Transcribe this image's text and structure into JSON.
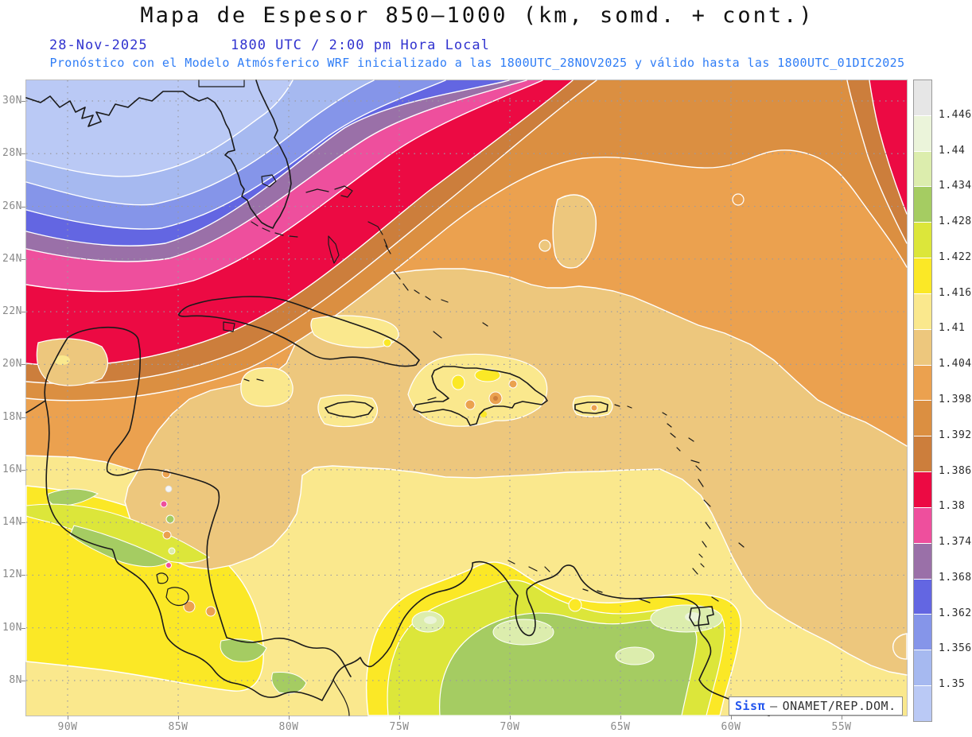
{
  "header": {
    "title": "Mapa de Espesor 850–1000 (km, somd. + cont.)",
    "date": "28-Nov-2025",
    "time_line": "1800 UTC / 2:00 pm Hora Local",
    "forecast_line": "Pronóstico con el Modelo Atmósferico WRF inicializado a las 1800UTC_28NOV2025 y válido hasta las  1800UTC_01DIC2025"
  },
  "axes": {
    "lat": [
      "30N",
      "28N",
      "26N",
      "24N",
      "22N",
      "20N",
      "18N",
      "16N",
      "14N",
      "12N",
      "10N",
      "8N"
    ],
    "lon": [
      "90W",
      "85W",
      "80W",
      "75W",
      "70W",
      "65W",
      "60W",
      "55W"
    ]
  },
  "colorbar": {
    "ticks": [
      "1.446",
      "1.44",
      "1.434",
      "1.428",
      "1.422",
      "1.416",
      "1.41",
      "1.404",
      "1.398",
      "1.392",
      "1.386",
      "1.38",
      "1.374",
      "1.368",
      "1.362",
      "1.356",
      "1.35"
    ],
    "colors": [
      "#e6e6e6",
      "#ebf4da",
      "#dcedad",
      "#a5cc62",
      "#dce63a",
      "#fbe826",
      "#fae88d",
      "#edc77d",
      "#eba14f",
      "#db8f41",
      "#cc7e3c",
      "#ec0a43",
      "#ee4f9d",
      "#9a70a8",
      "#6366e2",
      "#8595e9",
      "#a6b9f0",
      "#bac9f5"
    ]
  },
  "watermark": {
    "brand": "Sisπ",
    "dash": "–",
    "org": "ONAMET/REP.DOM."
  },
  "palette": {
    "paleblue": "#bac9f5",
    "lightblue": "#a6b9f0",
    "medblue": "#8595e9",
    "violet": "#6366e2",
    "purple": "#9a70a8",
    "pink": "#ee4f9d",
    "crimson": "#ec0a43",
    "brown": "#cc7e3c",
    "darkorange": "#db8f41",
    "orange": "#eba14f",
    "tan": "#edc77d",
    "paleyellow": "#fae88d",
    "yellow": "#fbe826",
    "yellowgreen": "#dce63a",
    "green": "#a5cc62",
    "palegreen": "#dcedad",
    "whitegreen": "#ebf4da"
  }
}
